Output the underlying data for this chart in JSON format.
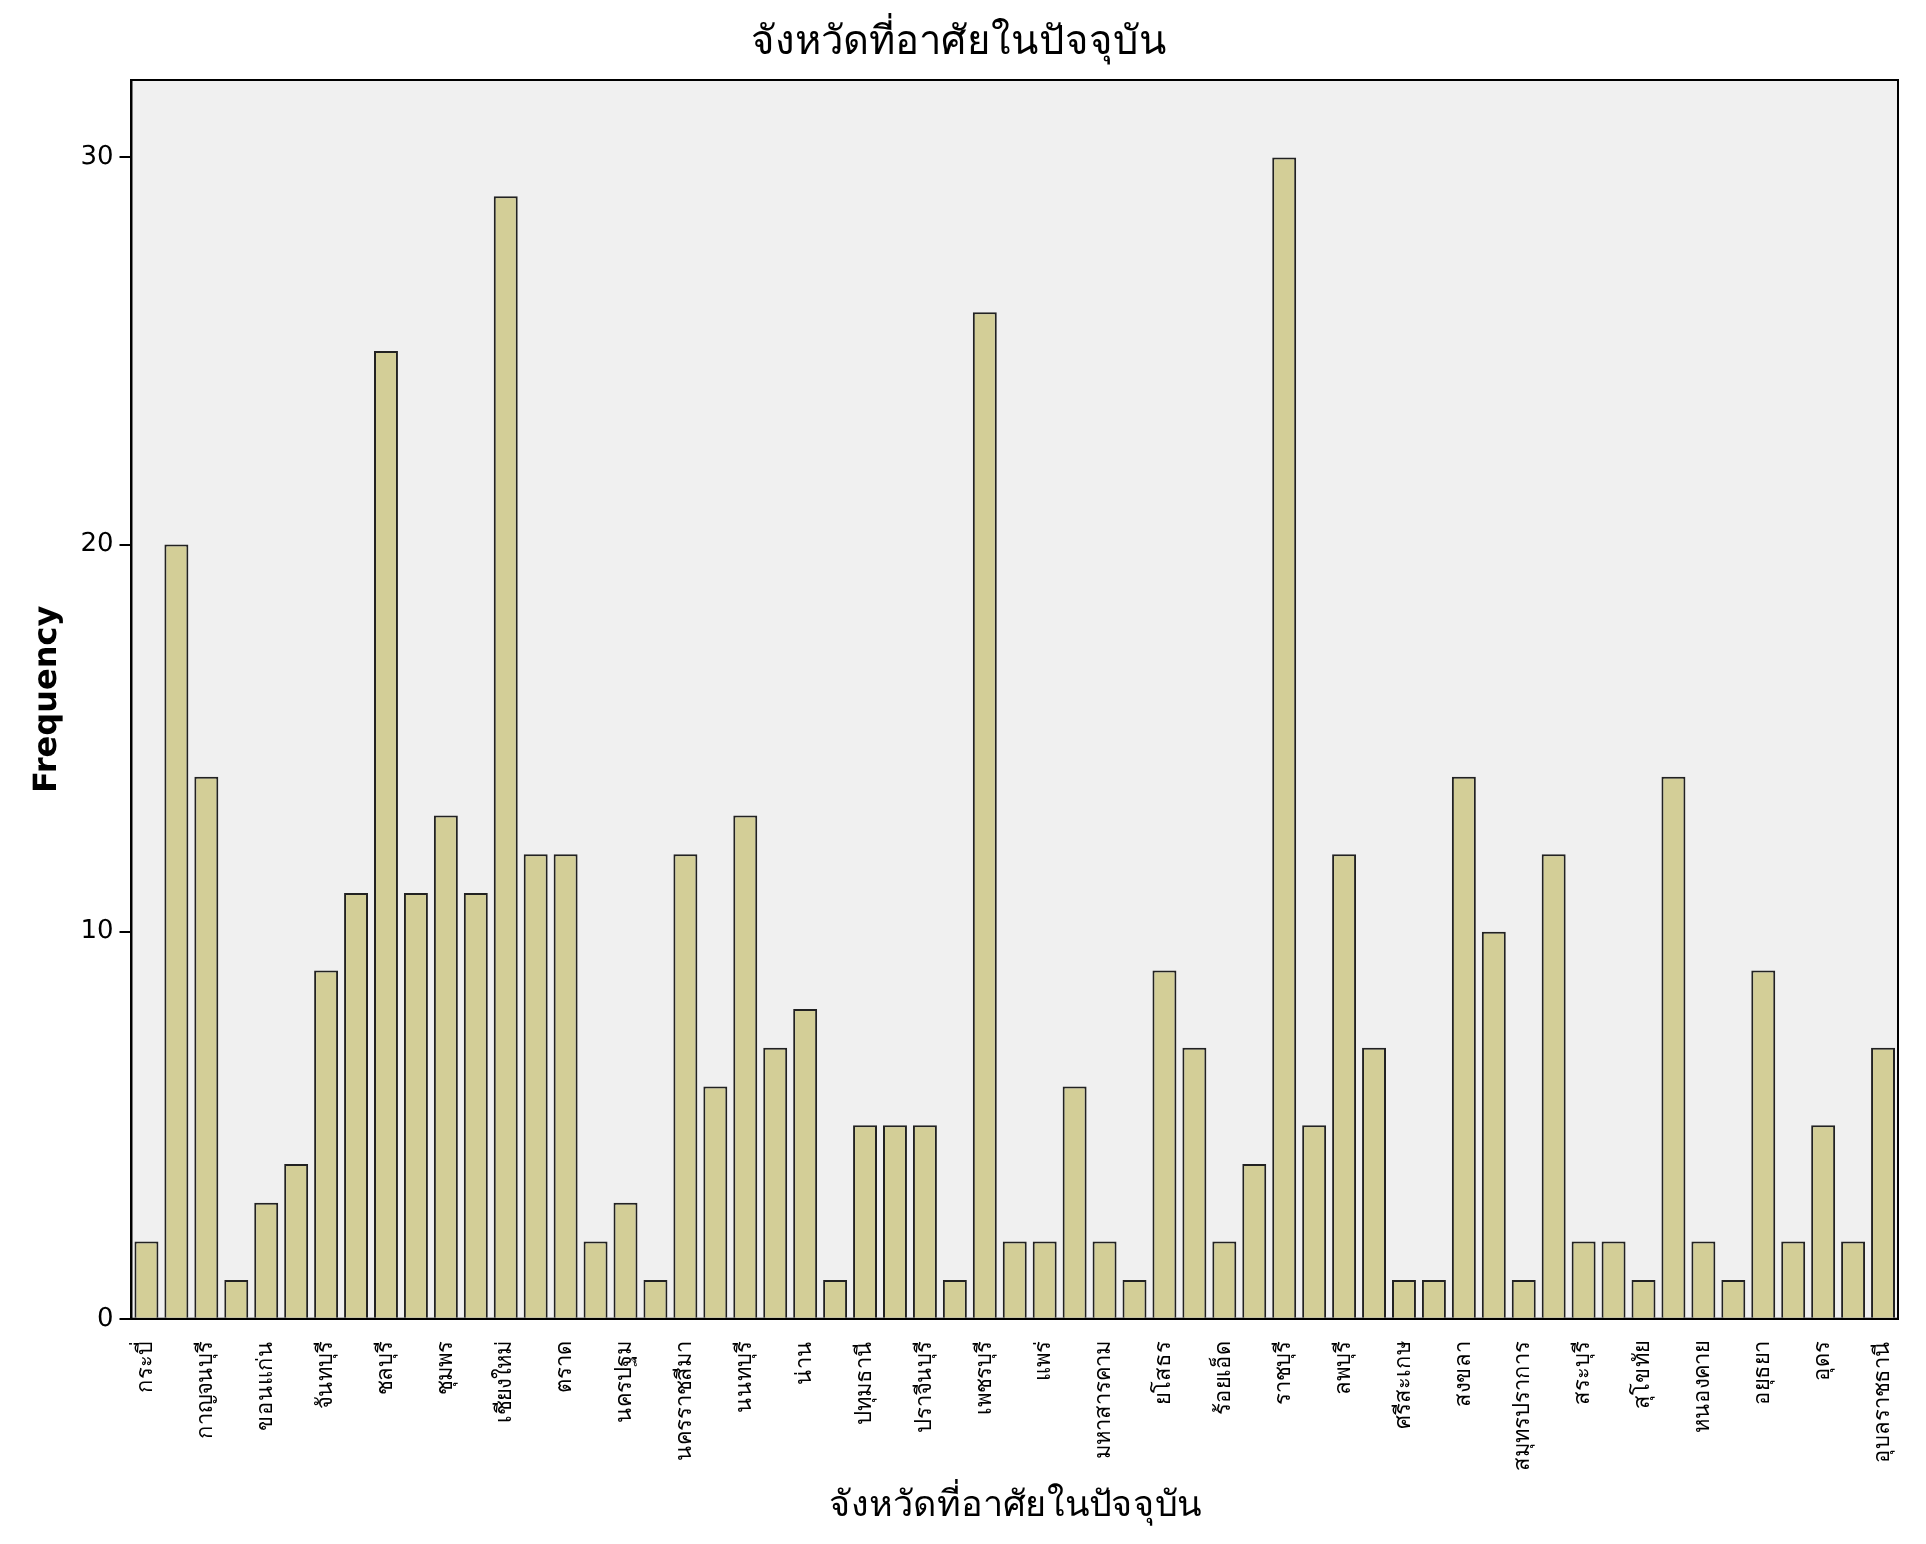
{
  "chart_data": {
    "type": "bar",
    "title": "จังหวัดที่อาศัยในปัจจุบัน",
    "xlabel": "จังหวัดที่อาศัยในปัจจุบัน",
    "ylabel": "Frequency",
    "categories": [
      "กระบี่",
      null,
      "กาญจนบุรี",
      null,
      "ขอนแก่น",
      null,
      "จันทบุรี",
      null,
      "ชลบุรี",
      null,
      "ชุมพร",
      null,
      "เชียงใหม่",
      null,
      "ตราด",
      null,
      "นครปฐม",
      null,
      "นครราชสีมา",
      null,
      "นนทบุรี",
      null,
      "น่าน",
      null,
      "ปทุมธานี",
      null,
      "ปราจีนบุรี",
      null,
      "เพชรบุรี",
      null,
      "แพร่",
      null,
      "มหาสารคาม",
      null,
      "ยโสธร",
      null,
      "ร้อยเอ็ด",
      null,
      "ราชบุรี",
      null,
      "ลพบุรี",
      null,
      "ศรีสะเกษ",
      null,
      "สงขลา",
      null,
      "สมุทรปราการ",
      null,
      "สระบุรี",
      null,
      "สุโขทัย",
      null,
      "หนองคาย",
      null,
      "อยุธยา",
      null,
      "อุดร",
      null,
      "อุบลราชธานี"
    ],
    "values": [
      2,
      20,
      14,
      1,
      3,
      4,
      9,
      11,
      25,
      11,
      13,
      11,
      29,
      12,
      12,
      2,
      3,
      1,
      12,
      6,
      13,
      7,
      8,
      1,
      5,
      5,
      5,
      1,
      26,
      2,
      2,
      6,
      2,
      1,
      9,
      7,
      2,
      4,
      30,
      5,
      12,
      7,
      1,
      1,
      14,
      10,
      1,
      12,
      2,
      2,
      1,
      14,
      2,
      1,
      9,
      2,
      5,
      2,
      7
    ],
    "color": "#d3ce97",
    "ylim": [
      0,
      32
    ],
    "yticks": [
      0,
      10,
      20,
      30
    ],
    "grid": false,
    "legend": false
  }
}
